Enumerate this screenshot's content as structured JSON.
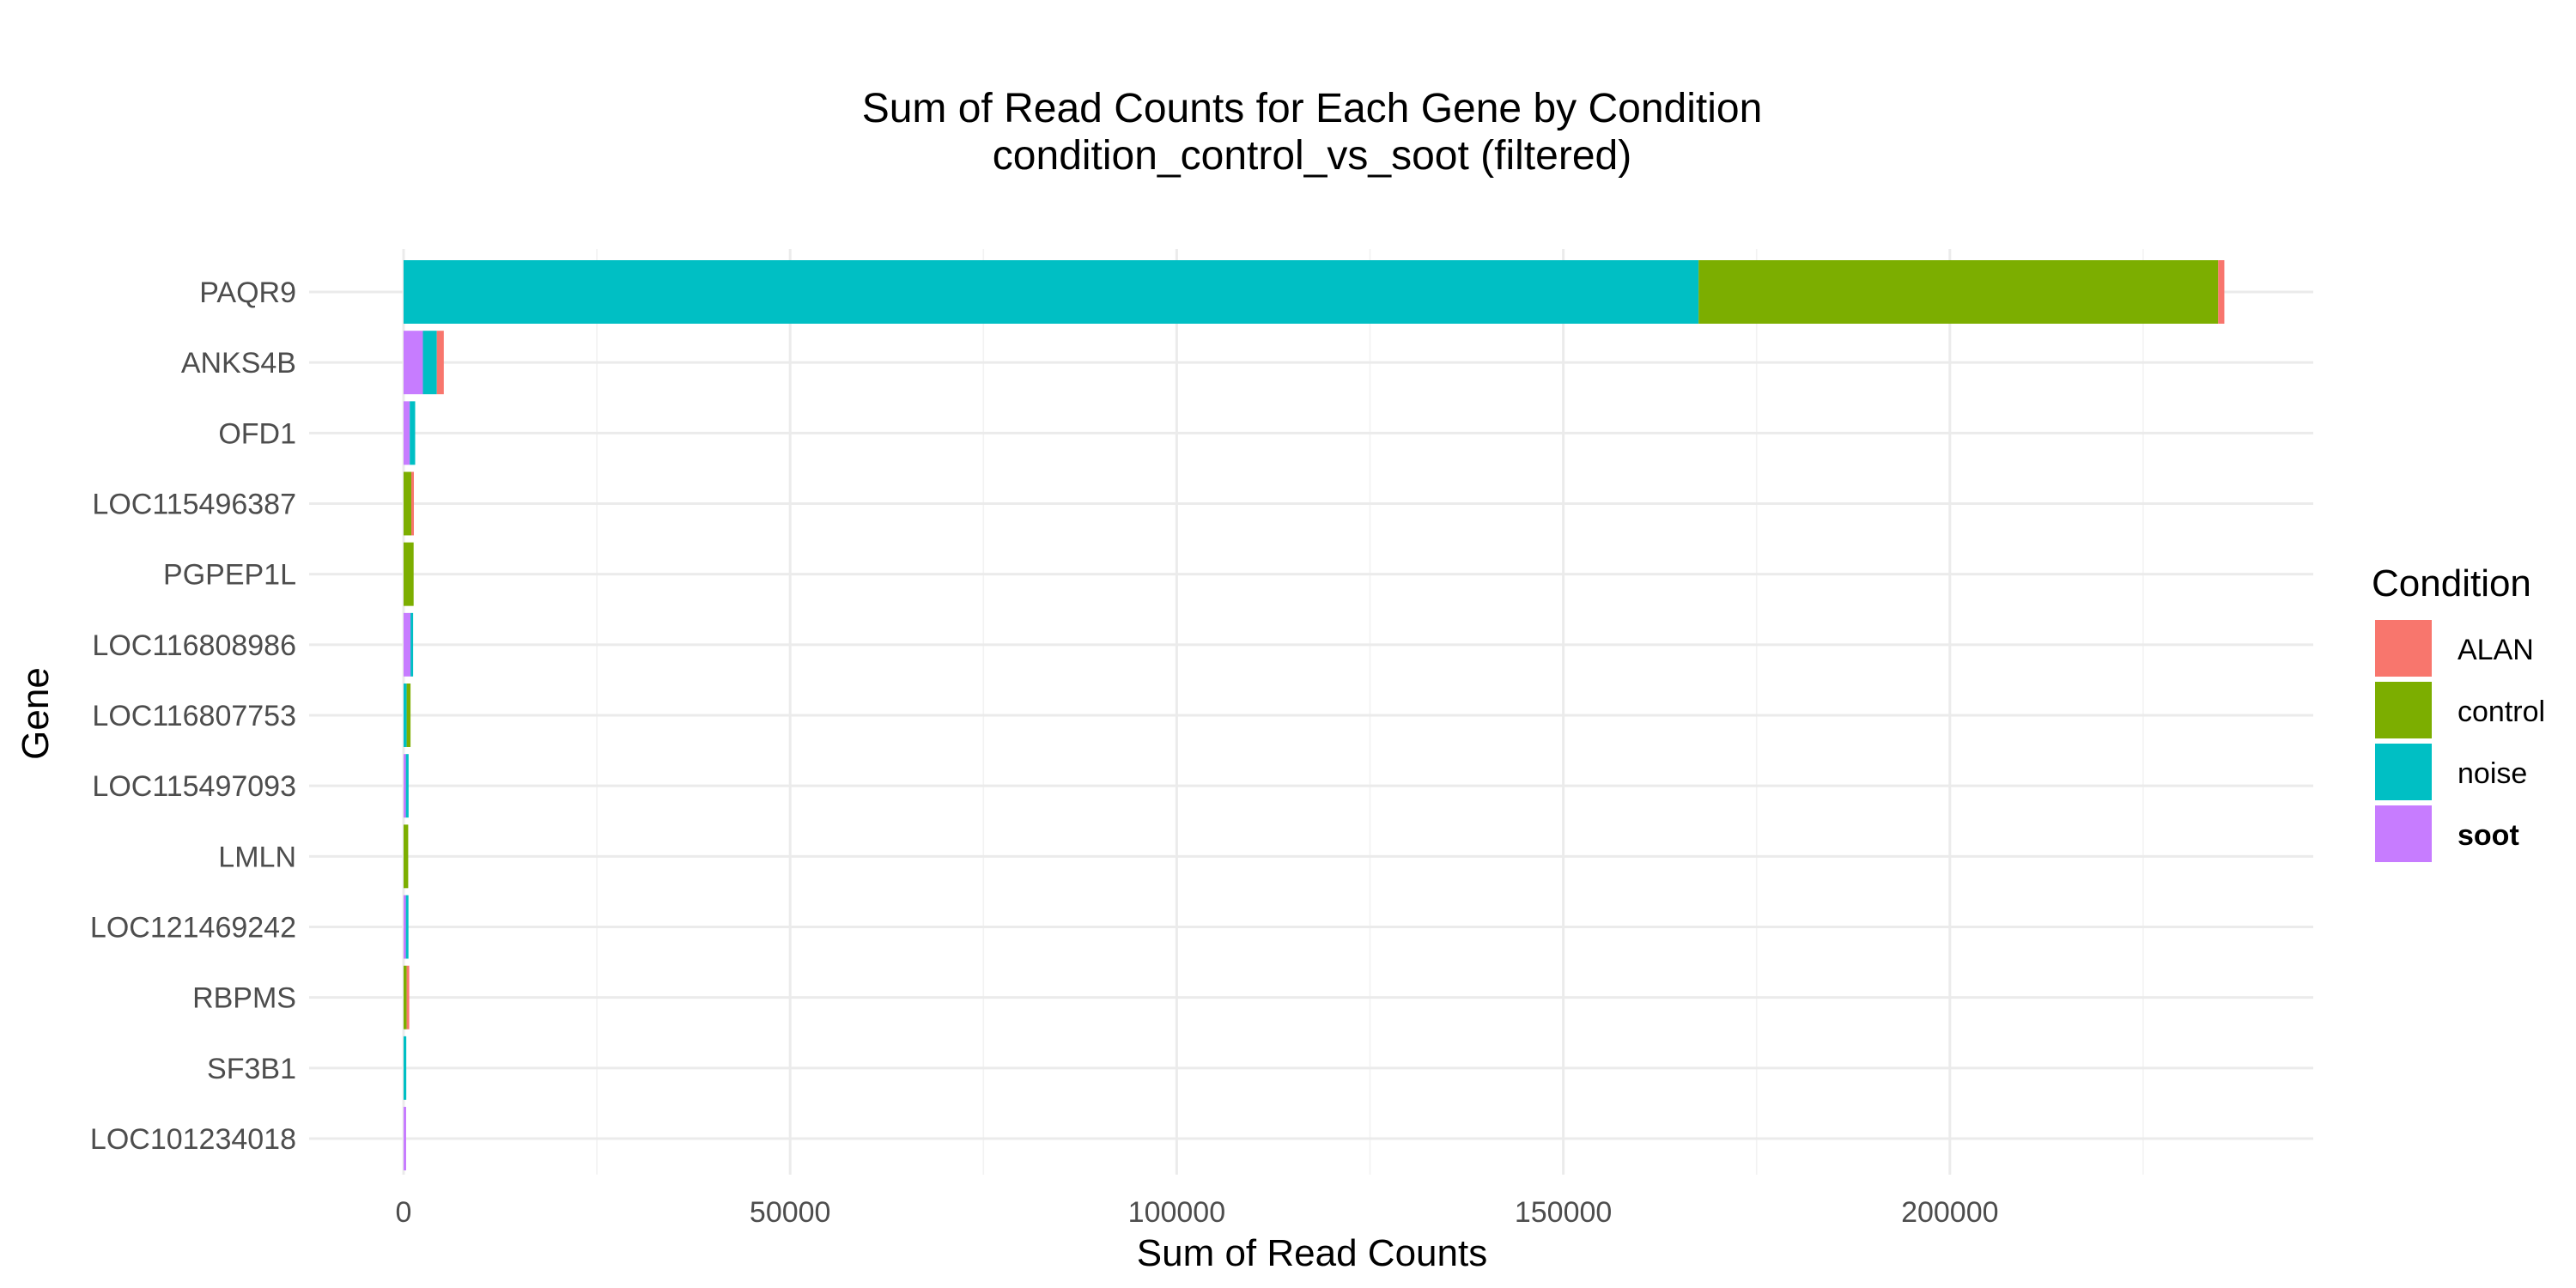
{
  "chart_data": {
    "type": "bar",
    "orientation": "horizontal",
    "stacked": true,
    "title": "Sum of Read Counts for Each Gene by Condition",
    "subtitle": "condition_control_vs_soot (filtered)",
    "xlabel": "Sum of Read Counts",
    "ylabel": "Gene",
    "xlim": [
      0,
      247000
    ],
    "xticks": [
      0,
      50000,
      100000,
      150000,
      200000
    ],
    "xtick_labels": [
      "0",
      "50000",
      "100000",
      "150000",
      "200000"
    ],
    "grid": true,
    "legend": {
      "title": "Condition",
      "position": "right",
      "entries": [
        "ALAN",
        "control",
        "noise",
        "soot"
      ],
      "bold_entry": "soot"
    },
    "categories": [
      "PAQR9",
      "ANKS4B",
      "OFD1",
      "LOC115496387",
      "PGPEP1L",
      "LOC116808986",
      "LOC116807753",
      "LOC115497093",
      "LMLN",
      "LOC121469242",
      "RBPMS",
      "SF3B1",
      "LOC101234018"
    ],
    "series": [
      {
        "name": "soot",
        "color": "#C77CFF",
        "values": [
          0,
          2500,
          800,
          0,
          0,
          900,
          0,
          300,
          0,
          300,
          0,
          0,
          300
        ]
      },
      {
        "name": "noise",
        "color": "#00BFC4",
        "values": [
          167500,
          1800,
          700,
          0,
          0,
          200,
          400,
          350,
          0,
          250,
          0,
          350,
          0
        ]
      },
      {
        "name": "control",
        "color": "#7CAE00",
        "values": [
          67200,
          0,
          0,
          1000,
          1300,
          0,
          500,
          0,
          600,
          0,
          400,
          0,
          0
        ]
      },
      {
        "name": "ALAN",
        "color": "#F8766D",
        "values": [
          800,
          900,
          0,
          300,
          0,
          0,
          0,
          0,
          0,
          0,
          150,
          0,
          0
        ]
      }
    ]
  }
}
